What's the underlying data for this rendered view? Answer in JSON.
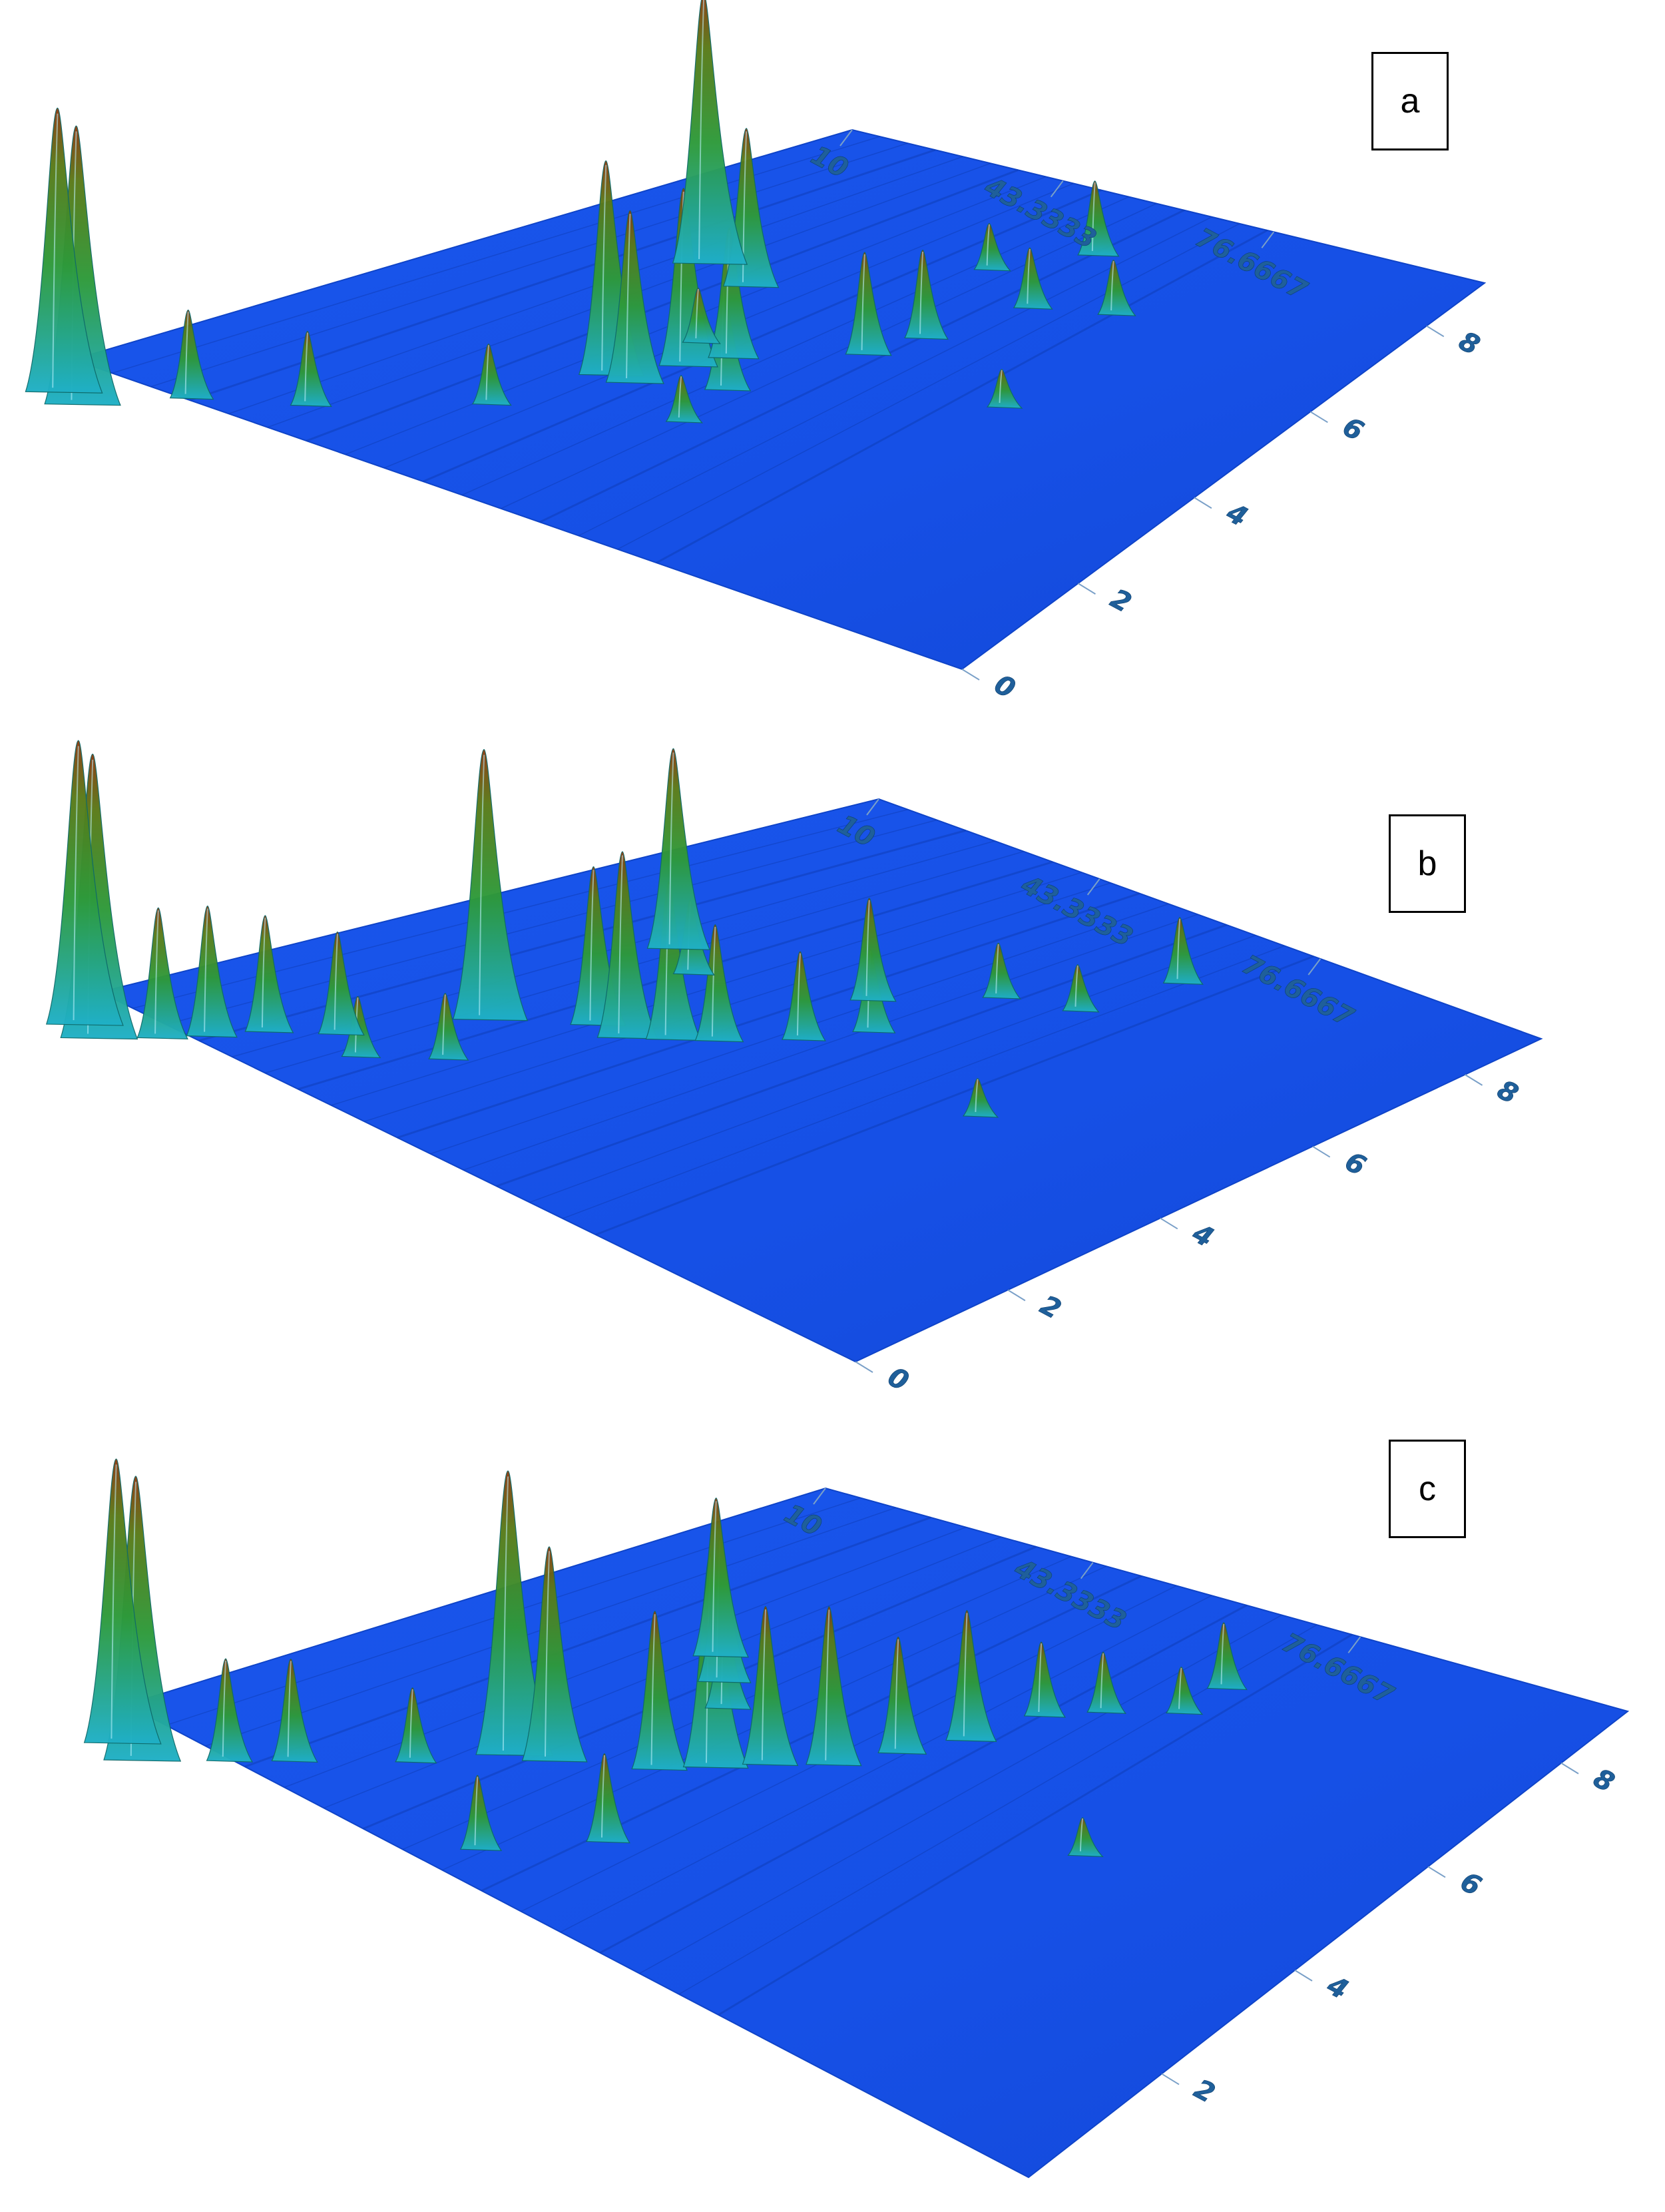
{
  "figure": {
    "panels": [
      {
        "label": "a"
      },
      {
        "label": "b"
      },
      {
        "label": "c"
      }
    ]
  },
  "colors": {
    "floor": "#1650e6",
    "floor_dark": "#0d3ab0",
    "peak_low": "#1fb0c8",
    "peak_mid": "#2e9a3a",
    "peak_high": "#8a3a10",
    "tick_text": "#1f5f9a"
  },
  "chart_data": [
    {
      "type": "surface",
      "panel": "a",
      "x_ticks": [
        "10",
        "43.3333",
        "76.6667"
      ],
      "y_ticks": [
        "0",
        "2",
        "4",
        "6",
        "8"
      ],
      "peaks": [
        {
          "x": 14,
          "y": 9.6,
          "h": 1.0
        },
        {
          "x": 17,
          "y": 9.7,
          "h": 0.98
        },
        {
          "x": 22,
          "y": 8.9,
          "h": 0.3
        },
        {
          "x": 30,
          "y": 8.3,
          "h": 0.25
        },
        {
          "x": 30,
          "y": 3.4,
          "h": 0.95
        },
        {
          "x": 38,
          "y": 3.6,
          "h": 0.55
        },
        {
          "x": 44,
          "y": 6.0,
          "h": 0.75
        },
        {
          "x": 47,
          "y": 6.0,
          "h": 0.6
        },
        {
          "x": 48,
          "y": 5.4,
          "h": 0.62
        },
        {
          "x": 50,
          "y": 5.0,
          "h": 0.45
        },
        {
          "x": 55,
          "y": 5.6,
          "h": 0.35
        },
        {
          "x": 60,
          "y": 4.2,
          "h": 0.35
        },
        {
          "x": 62,
          "y": 3.6,
          "h": 0.3
        },
        {
          "x": 41,
          "y": 7.2,
          "h": 0.2
        },
        {
          "x": 57,
          "y": 6.4,
          "h": 0.15
        },
        {
          "x": 45,
          "y": 4.9,
          "h": 0.18
        },
        {
          "x": 66,
          "y": 2.5,
          "h": 0.2
        },
        {
          "x": 75,
          "y": 2.2,
          "h": 0.18
        },
        {
          "x": 55,
          "y": 2.0,
          "h": 0.15
        },
        {
          "x": 62,
          "y": 1.2,
          "h": 0.25
        },
        {
          "x": 80,
          "y": 4.4,
          "h": 0.12
        }
      ]
    },
    {
      "type": "surface",
      "panel": "b",
      "x_ticks": [
        "10",
        "43.3333",
        "76.6667"
      ],
      "y_ticks": [
        "0",
        "2",
        "4",
        "6",
        "8"
      ],
      "peaks": [
        {
          "x": 14,
          "y": 9.6,
          "h": 1.0
        },
        {
          "x": 17,
          "y": 9.7,
          "h": 1.0
        },
        {
          "x": 20,
          "y": 9.2,
          "h": 0.45
        },
        {
          "x": 22,
          "y": 8.8,
          "h": 0.45
        },
        {
          "x": 24,
          "y": 8.3,
          "h": 0.4
        },
        {
          "x": 28,
          "y": 7.8,
          "h": 0.35
        },
        {
          "x": 33,
          "y": 6.5,
          "h": 0.95
        },
        {
          "x": 30,
          "y": 4.0,
          "h": 0.7
        },
        {
          "x": 36,
          "y": 4.3,
          "h": 0.25
        },
        {
          "x": 40,
          "y": 5.8,
          "h": 0.55
        },
        {
          "x": 44,
          "y": 5.8,
          "h": 0.65
        },
        {
          "x": 47,
          "y": 5.5,
          "h": 0.55
        },
        {
          "x": 50,
          "y": 5.2,
          "h": 0.4
        },
        {
          "x": 55,
          "y": 4.6,
          "h": 0.3
        },
        {
          "x": 58,
          "y": 4.0,
          "h": 0.28
        },
        {
          "x": 52,
          "y": 3.5,
          "h": 0.35
        },
        {
          "x": 60,
          "y": 2.6,
          "h": 0.18
        },
        {
          "x": 68,
          "y": 2.3,
          "h": 0.15
        },
        {
          "x": 38,
          "y": 7.4,
          "h": 0.22
        },
        {
          "x": 33,
          "y": 8.0,
          "h": 0.2
        },
        {
          "x": 70,
          "y": 1.2,
          "h": 0.22
        },
        {
          "x": 80,
          "y": 4.6,
          "h": 0.12
        }
      ]
    },
    {
      "type": "surface",
      "panel": "c",
      "x_ticks": [
        "10",
        "43.3333",
        "76.6667"
      ],
      "y_ticks": [
        "2",
        "4",
        "6",
        "8"
      ],
      "peaks": [
        {
          "x": 14,
          "y": 9.6,
          "h": 1.0
        },
        {
          "x": 17,
          "y": 9.7,
          "h": 1.0
        },
        {
          "x": 21,
          "y": 9.0,
          "h": 0.35
        },
        {
          "x": 24,
          "y": 8.5,
          "h": 0.35
        },
        {
          "x": 34,
          "y": 6.8,
          "h": 1.0
        },
        {
          "x": 37,
          "y": 6.6,
          "h": 0.75
        },
        {
          "x": 32,
          "y": 3.8,
          "h": 0.55
        },
        {
          "x": 36,
          "y": 4.2,
          "h": 0.5
        },
        {
          "x": 40,
          "y": 4.6,
          "h": 0.35
        },
        {
          "x": 30,
          "y": 7.6,
          "h": 0.25
        },
        {
          "x": 44,
          "y": 6.0,
          "h": 0.55
        },
        {
          "x": 47,
          "y": 5.6,
          "h": 0.75
        },
        {
          "x": 50,
          "y": 5.2,
          "h": 0.55
        },
        {
          "x": 54,
          "y": 4.8,
          "h": 0.55
        },
        {
          "x": 57,
          "y": 4.2,
          "h": 0.4
        },
        {
          "x": 60,
          "y": 3.6,
          "h": 0.45
        },
        {
          "x": 62,
          "y": 2.8,
          "h": 0.25
        },
        {
          "x": 66,
          "y": 2.4,
          "h": 0.2
        },
        {
          "x": 72,
          "y": 2.0,
          "h": 0.15
        },
        {
          "x": 50,
          "y": 7.4,
          "h": 0.3
        },
        {
          "x": 44,
          "y": 8.4,
          "h": 0.25
        },
        {
          "x": 72,
          "y": 1.4,
          "h": 0.22
        },
        {
          "x": 82,
          "y": 4.6,
          "h": 0.12
        }
      ]
    }
  ]
}
